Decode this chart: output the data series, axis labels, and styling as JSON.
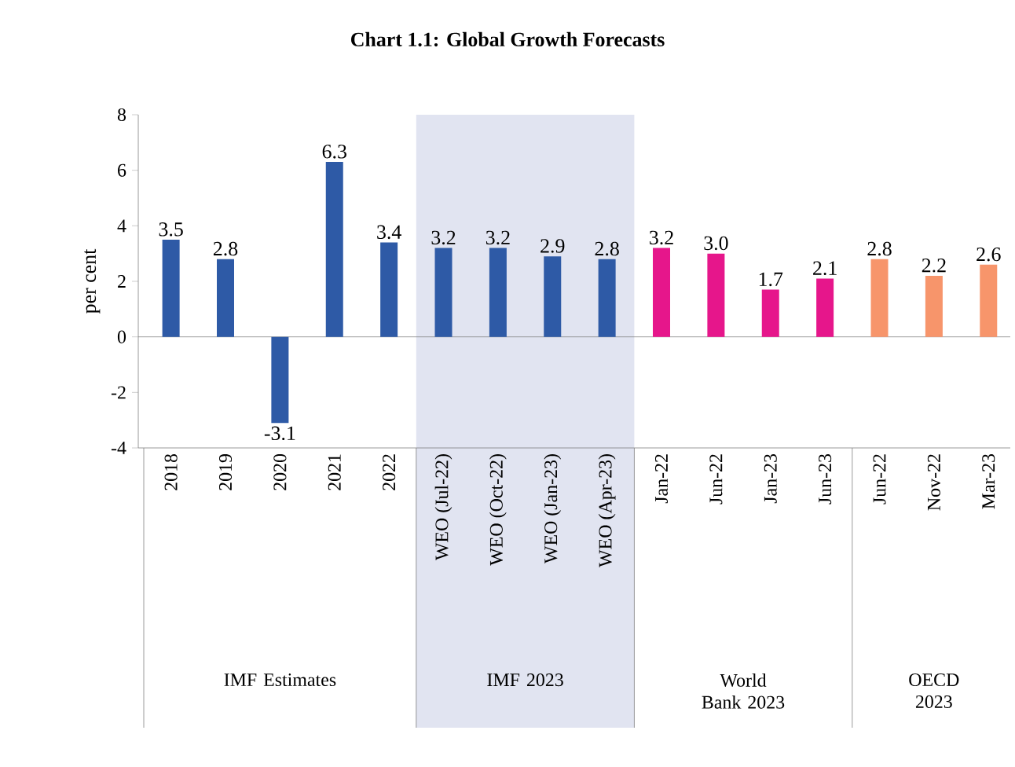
{
  "chart_data": {
    "type": "bar",
    "title": "Chart 1.1: Global Growth Forecasts",
    "ylabel": "per cent",
    "categories": [
      "2018",
      "2019",
      "2020",
      "2021",
      "2022",
      "WEO (Jul-22)",
      "WEO (Oct-22)",
      "WEO (Jan-23)",
      "WEO (Apr-23)",
      "Jan-22",
      "Jun-22",
      "Jan-23",
      "Jun-23",
      "Jun-22",
      "Nov-22",
      "Mar-23"
    ],
    "values": [
      3.5,
      2.8,
      -3.1,
      6.3,
      3.4,
      3.2,
      3.2,
      2.9,
      2.8,
      3.2,
      3.0,
      1.7,
      2.1,
      2.8,
      2.2,
      2.6
    ],
    "value_labels": [
      "3.5",
      "2.8",
      "-3.1",
      "6.3",
      "3.4",
      "3.2",
      "3.2",
      "2.9",
      "2.8",
      "3.2",
      "3.0",
      "1.7",
      "2.1",
      "2.8",
      "2.2",
      "2.6"
    ],
    "colors": [
      "#2e5aa6",
      "#2e5aa6",
      "#2e5aa6",
      "#2e5aa6",
      "#2e5aa6",
      "#2e5aa6",
      "#2e5aa6",
      "#2e5aa6",
      "#2e5aa6",
      "#e6168b",
      "#e6168b",
      "#e6168b",
      "#e6168b",
      "#f7956b",
      "#f7956b",
      "#f7956b"
    ],
    "ylim": [
      -4,
      8
    ],
    "yticks": [
      -4,
      -2,
      0,
      2,
      4,
      6,
      8
    ],
    "bands": [
      {
        "axis": "x",
        "from": "WEO (Jul-22)",
        "to": "WEO (Apr-23)",
        "label": "IMF 2023",
        "color": "#e1e4f1"
      }
    ],
    "annotations": [
      "IMF Estimates",
      "World Bank 2023",
      "OECD 2023"
    ]
  }
}
